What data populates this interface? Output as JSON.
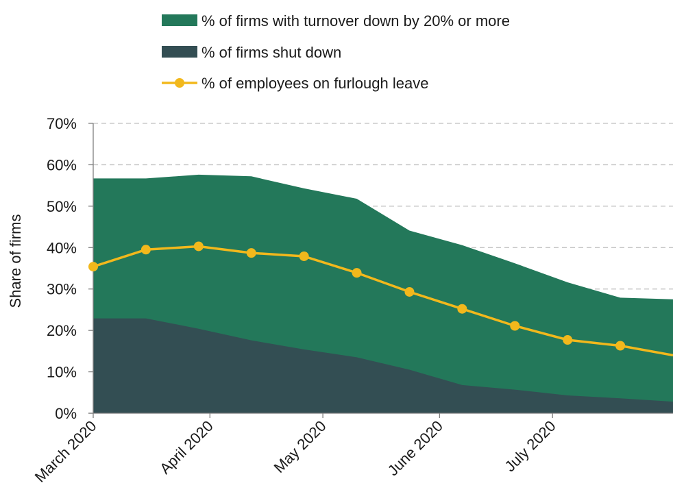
{
  "chart_data": {
    "type": "area",
    "ylabel": "Share of firms",
    "xlabel": "",
    "y_unit": "%",
    "ylim": [
      0,
      70
    ],
    "yticks": [
      0,
      10,
      20,
      30,
      40,
      50,
      60,
      70
    ],
    "ytick_labels": [
      "0%",
      "10%",
      "20%",
      "30%",
      "40%",
      "50%",
      "60%",
      "70%"
    ],
    "grid": "horizontal dashed",
    "legend_position": "top",
    "x_dates": [
      "2020-03-01",
      "2020-03-15",
      "2020-03-29",
      "2020-04-12",
      "2020-04-26",
      "2020-05-10",
      "2020-05-24",
      "2020-06-07",
      "2020-06-21",
      "2020-07-05",
      "2020-07-19",
      "2020-08-02"
    ],
    "x_range": [
      "2020-03-01",
      "2020-08-02"
    ],
    "x_tick_dates": [
      "2020-03-01",
      "2020-04-01",
      "2020-05-01",
      "2020-06-01",
      "2020-07-01"
    ],
    "x_tick_labels": [
      "March 2020",
      "April 2020",
      "May 2020",
      "June 2020",
      "July 2020"
    ],
    "series": [
      {
        "name": "% of firms with turnover down by 20% or more",
        "kind": "area",
        "color": "#23785a",
        "values": [
          56.7,
          56.7,
          57.6,
          57.2,
          54.3,
          51.8,
          44.1,
          40.6,
          36.2,
          31.6,
          27.9,
          27.5
        ]
      },
      {
        "name": "% of firms shut down",
        "kind": "area",
        "color": "#334e53",
        "values": [
          22.9,
          22.9,
          20.4,
          17.6,
          15.4,
          13.5,
          10.5,
          6.8,
          5.7,
          4.3,
          3.6,
          2.8
        ]
      },
      {
        "name": "%  of employees on furlough leave",
        "kind": "line",
        "color": "#f2b81c",
        "values": [
          35.4,
          39.5,
          40.3,
          38.7,
          37.9,
          33.9,
          29.3,
          25.2,
          21.1,
          17.7,
          16.3,
          14.0
        ]
      }
    ]
  }
}
